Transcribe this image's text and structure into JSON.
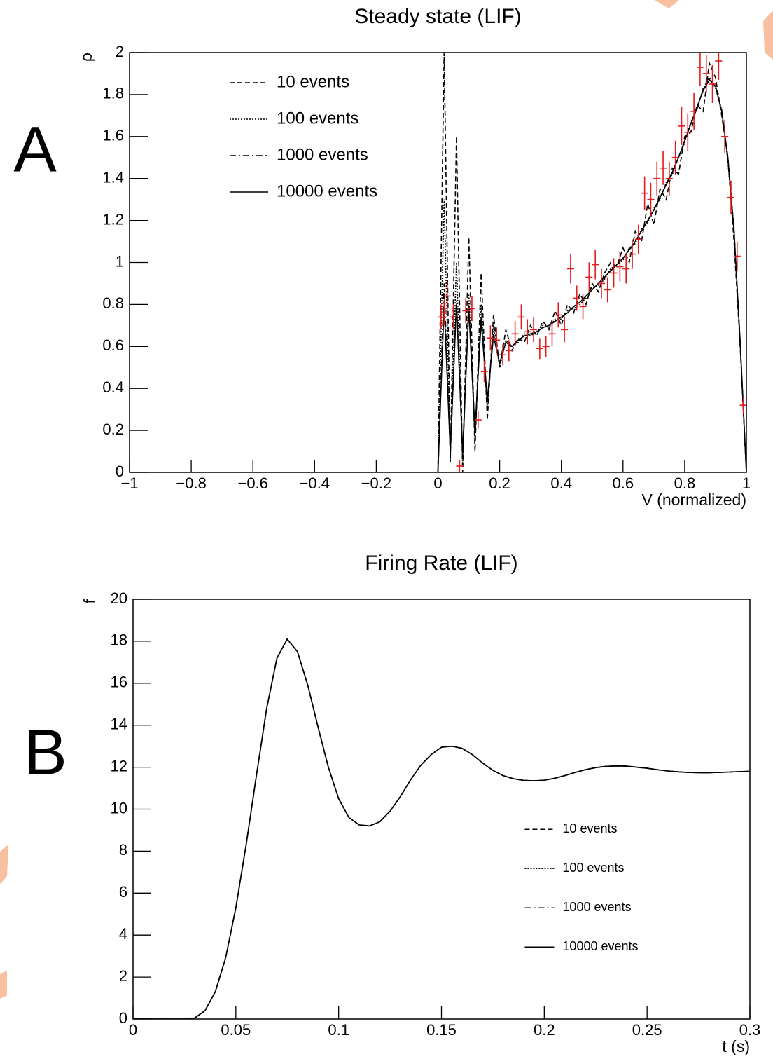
{
  "chart_data": [
    {
      "type": "line",
      "panel_label": "A",
      "title": "Steady state (LIF)",
      "xlabel": "V (normalized)",
      "ylabel": "ρ",
      "xlim": [
        -1,
        1
      ],
      "ylim": [
        0,
        2
      ],
      "legend": "upper left",
      "xticks": [
        {
          "value": -1,
          "label": "−1"
        },
        {
          "value": -0.8,
          "label": "−0.8"
        },
        {
          "value": -0.6,
          "label": "−0.6"
        },
        {
          "value": -0.4,
          "label": "−0.4"
        },
        {
          "value": -0.2,
          "label": "−0.2"
        },
        0,
        0.2,
        0.4,
        0.6,
        0.8,
        1
      ],
      "yticks": [
        0,
        0.2,
        0.4,
        0.6,
        0.8,
        1,
        1.2,
        1.4,
        1.6,
        1.8,
        2
      ],
      "x": [
        0,
        0.02,
        0.04,
        0.06,
        0.08,
        0.1,
        0.12,
        0.14,
        0.16,
        0.18,
        0.2,
        0.22,
        0.24,
        0.26,
        0.28,
        0.3,
        0.32,
        0.34,
        0.36,
        0.38,
        0.4,
        0.42,
        0.44,
        0.46,
        0.48,
        0.5,
        0.52,
        0.54,
        0.56,
        0.58,
        0.6,
        0.62,
        0.64,
        0.66,
        0.68,
        0.7,
        0.72,
        0.74,
        0.76,
        0.78,
        0.8,
        0.82,
        0.84,
        0.86,
        0.88,
        0.9,
        0.92,
        0.94,
        0.96,
        0.98,
        1
      ],
      "series": [
        {
          "name": "10 events",
          "color": "#000000",
          "linestyle": "dashed",
          "values": [
            0,
            2.0,
            0.05,
            1.6,
            0.0,
            1.12,
            0.1,
            0.95,
            0.25,
            0.75,
            0.5,
            0.68,
            0.58,
            0.64,
            0.62,
            0.7,
            0.65,
            0.72,
            0.68,
            0.77,
            0.7,
            0.8,
            0.76,
            0.85,
            0.8,
            0.9,
            0.86,
            0.95,
            1.0,
            0.98,
            1.07,
            1.0,
            1.15,
            1.1,
            1.28,
            1.18,
            1.35,
            1.3,
            1.45,
            1.42,
            1.6,
            1.62,
            1.75,
            1.72,
            1.95,
            1.88,
            1.7,
            1.5,
            1.1,
            0.6,
            0
          ]
        },
        {
          "name": "100 events",
          "color": "#000000",
          "linestyle": "dotted",
          "values": [
            0,
            1.3,
            0.1,
            1.0,
            0.05,
            0.85,
            0.15,
            0.8,
            0.3,
            0.7,
            0.5,
            0.63,
            0.6,
            0.62,
            0.66,
            0.65,
            0.67,
            0.7,
            0.69,
            0.73,
            0.73,
            0.77,
            0.78,
            0.8,
            0.83,
            0.88,
            0.89,
            0.92,
            0.97,
            0.99,
            1.01,
            1.07,
            1.09,
            1.16,
            1.19,
            1.26,
            1.3,
            1.38,
            1.42,
            1.5,
            1.57,
            1.67,
            1.73,
            1.83,
            1.88,
            1.83,
            1.73,
            1.48,
            1.16,
            0.6,
            0
          ]
        },
        {
          "name": "1000 events",
          "color": "#000000",
          "linestyle": "dashdot",
          "values": [
            0,
            0.9,
            0.08,
            0.82,
            0.08,
            0.8,
            0.18,
            0.74,
            0.33,
            0.66,
            0.52,
            0.62,
            0.6,
            0.63,
            0.65,
            0.66,
            0.67,
            0.69,
            0.7,
            0.72,
            0.74,
            0.76,
            0.79,
            0.81,
            0.84,
            0.87,
            0.9,
            0.93,
            0.96,
            0.99,
            1.02,
            1.06,
            1.1,
            1.15,
            1.2,
            1.25,
            1.31,
            1.37,
            1.43,
            1.5,
            1.58,
            1.66,
            1.74,
            1.82,
            1.87,
            1.84,
            1.72,
            1.5,
            1.15,
            0.62,
            0
          ]
        },
        {
          "name": "10000 events",
          "color": "#000000",
          "linestyle": "solid",
          "values": [
            0,
            0.8,
            0.1,
            0.8,
            0.1,
            0.78,
            0.2,
            0.72,
            0.35,
            0.65,
            0.52,
            0.62,
            0.6,
            0.63,
            0.65,
            0.66,
            0.67,
            0.69,
            0.7,
            0.72,
            0.74,
            0.76,
            0.79,
            0.81,
            0.84,
            0.87,
            0.9,
            0.93,
            0.96,
            0.99,
            1.02,
            1.06,
            1.1,
            1.15,
            1.2,
            1.25,
            1.31,
            1.37,
            1.43,
            1.5,
            1.58,
            1.66,
            1.74,
            1.82,
            1.87,
            1.84,
            1.72,
            1.5,
            1.15,
            0.62,
            0
          ]
        }
      ],
      "points": {
        "color": "#e41a1c",
        "x": [
          0.01,
          0.02,
          0.03,
          0.05,
          0.07,
          0.09,
          0.11,
          0.13,
          0.15,
          0.17,
          0.19,
          0.21,
          0.23,
          0.25,
          0.27,
          0.29,
          0.31,
          0.33,
          0.35,
          0.37,
          0.39,
          0.41,
          0.43,
          0.45,
          0.47,
          0.49,
          0.51,
          0.53,
          0.55,
          0.57,
          0.59,
          0.61,
          0.63,
          0.65,
          0.67,
          0.69,
          0.71,
          0.73,
          0.75,
          0.77,
          0.79,
          0.81,
          0.83,
          0.85,
          0.87,
          0.89,
          0.91,
          0.93,
          0.95,
          0.97,
          0.99
        ],
        "values": [
          0.74,
          0.76,
          0.84,
          0.74,
          0.03,
          0.77,
          0.78,
          0.25,
          0.48,
          0.64,
          0.63,
          0.56,
          0.58,
          0.66,
          0.74,
          0.67,
          0.68,
          0.59,
          0.6,
          0.66,
          0.75,
          0.68,
          0.97,
          0.83,
          0.79,
          0.93,
          0.99,
          0.9,
          0.87,
          0.95,
          0.98,
          0.97,
          1.04,
          1.11,
          1.33,
          1.3,
          1.4,
          1.45,
          1.4,
          1.5,
          1.65,
          1.62,
          1.72,
          1.93,
          1.9,
          1.85,
          1.96,
          1.6,
          1.31,
          1.03,
          0.32
        ],
        "errors": [
          0.06,
          0.06,
          0.07,
          0.06,
          0.03,
          0.06,
          0.06,
          0.04,
          0.05,
          0.06,
          0.06,
          0.05,
          0.05,
          0.06,
          0.06,
          0.06,
          0.06,
          0.05,
          0.05,
          0.06,
          0.06,
          0.06,
          0.07,
          0.06,
          0.06,
          0.07,
          0.07,
          0.07,
          0.06,
          0.07,
          0.07,
          0.07,
          0.07,
          0.07,
          0.08,
          0.08,
          0.08,
          0.08,
          0.08,
          0.08,
          0.09,
          0.09,
          0.09,
          0.09,
          0.09,
          0.09,
          0.09,
          0.08,
          0.08,
          0.07,
          0.04
        ]
      }
    },
    {
      "type": "line",
      "panel_label": "B",
      "title": "Firing Rate (LIF)",
      "xlabel": "t (s)",
      "ylabel": "f",
      "xlim": [
        0,
        0.3
      ],
      "ylim": [
        0,
        20
      ],
      "legend": "lower right",
      "xticks": [
        0,
        0.05,
        0.1,
        0.15,
        0.2,
        0.25,
        0.3
      ],
      "yticks": [
        0,
        2,
        4,
        6,
        8,
        10,
        12,
        14,
        16,
        18,
        20
      ],
      "x": [
        0,
        0.005,
        0.01,
        0.015,
        0.02,
        0.025,
        0.03,
        0.035,
        0.04,
        0.045,
        0.05,
        0.055,
        0.06,
        0.065,
        0.07,
        0.075,
        0.08,
        0.085,
        0.09,
        0.095,
        0.1,
        0.105,
        0.11,
        0.115,
        0.12,
        0.125,
        0.13,
        0.135,
        0.14,
        0.145,
        0.15,
        0.155,
        0.16,
        0.165,
        0.17,
        0.175,
        0.18,
        0.185,
        0.19,
        0.195,
        0.2,
        0.205,
        0.21,
        0.215,
        0.22,
        0.225,
        0.23,
        0.235,
        0.24,
        0.245,
        0.25,
        0.255,
        0.26,
        0.265,
        0.27,
        0.275,
        0.28,
        0.285,
        0.29,
        0.295,
        0.3
      ],
      "series": [
        {
          "name": "10 events",
          "color": "#000000",
          "linestyle": "dashed",
          "values": [
            0,
            0,
            0,
            0,
            0,
            0,
            0.05,
            0.4,
            1.3,
            2.9,
            5.3,
            8.3,
            11.6,
            14.8,
            17.2,
            18.1,
            17.5,
            15.9,
            13.9,
            12.0,
            10.5,
            9.6,
            9.25,
            9.2,
            9.4,
            9.9,
            10.6,
            11.4,
            12.1,
            12.6,
            12.95,
            13.0,
            12.9,
            12.6,
            12.2,
            11.85,
            11.6,
            11.45,
            11.37,
            11.35,
            11.38,
            11.47,
            11.6,
            11.75,
            11.88,
            11.98,
            12.04,
            12.06,
            12.05,
            12.0,
            11.95,
            11.88,
            11.82,
            11.78,
            11.75,
            11.74,
            11.74,
            11.75,
            11.77,
            11.79,
            11.8
          ]
        },
        {
          "name": "100 events",
          "color": "#000000",
          "linestyle": "dotted",
          "values": [
            0,
            0,
            0,
            0,
            0,
            0,
            0.05,
            0.4,
            1.3,
            2.9,
            5.3,
            8.3,
            11.6,
            14.8,
            17.2,
            18.1,
            17.5,
            15.9,
            13.9,
            12.0,
            10.5,
            9.6,
            9.25,
            9.2,
            9.4,
            9.9,
            10.6,
            11.4,
            12.1,
            12.6,
            12.95,
            13.0,
            12.9,
            12.6,
            12.2,
            11.85,
            11.6,
            11.45,
            11.37,
            11.35,
            11.38,
            11.47,
            11.6,
            11.75,
            11.88,
            11.98,
            12.04,
            12.06,
            12.05,
            12.0,
            11.95,
            11.88,
            11.82,
            11.78,
            11.75,
            11.74,
            11.74,
            11.75,
            11.77,
            11.79,
            11.8
          ]
        },
        {
          "name": "1000 events",
          "color": "#000000",
          "linestyle": "dashdot",
          "values": [
            0,
            0,
            0,
            0,
            0,
            0,
            0.05,
            0.4,
            1.3,
            2.9,
            5.3,
            8.3,
            11.6,
            14.8,
            17.2,
            18.1,
            17.5,
            15.9,
            13.9,
            12.0,
            10.5,
            9.6,
            9.25,
            9.2,
            9.4,
            9.9,
            10.6,
            11.4,
            12.1,
            12.6,
            12.95,
            13.0,
            12.9,
            12.6,
            12.2,
            11.85,
            11.6,
            11.45,
            11.37,
            11.35,
            11.38,
            11.47,
            11.6,
            11.75,
            11.88,
            11.98,
            12.04,
            12.06,
            12.05,
            12.0,
            11.95,
            11.88,
            11.82,
            11.78,
            11.75,
            11.74,
            11.74,
            11.75,
            11.77,
            11.79,
            11.8
          ]
        },
        {
          "name": "10000 events",
          "color": "#000000",
          "linestyle": "solid",
          "values": [
            0,
            0,
            0,
            0,
            0,
            0,
            0.05,
            0.4,
            1.3,
            2.9,
            5.3,
            8.3,
            11.6,
            14.8,
            17.2,
            18.1,
            17.5,
            15.9,
            13.9,
            12.0,
            10.5,
            9.6,
            9.25,
            9.2,
            9.4,
            9.9,
            10.6,
            11.4,
            12.1,
            12.6,
            12.95,
            13.0,
            12.9,
            12.6,
            12.2,
            11.85,
            11.6,
            11.45,
            11.37,
            11.35,
            11.38,
            11.47,
            11.6,
            11.75,
            11.88,
            11.98,
            12.04,
            12.06,
            12.05,
            12.0,
            11.95,
            11.88,
            11.82,
            11.78,
            11.75,
            11.74,
            11.74,
            11.75,
            11.77,
            11.79,
            11.8
          ]
        }
      ]
    }
  ]
}
